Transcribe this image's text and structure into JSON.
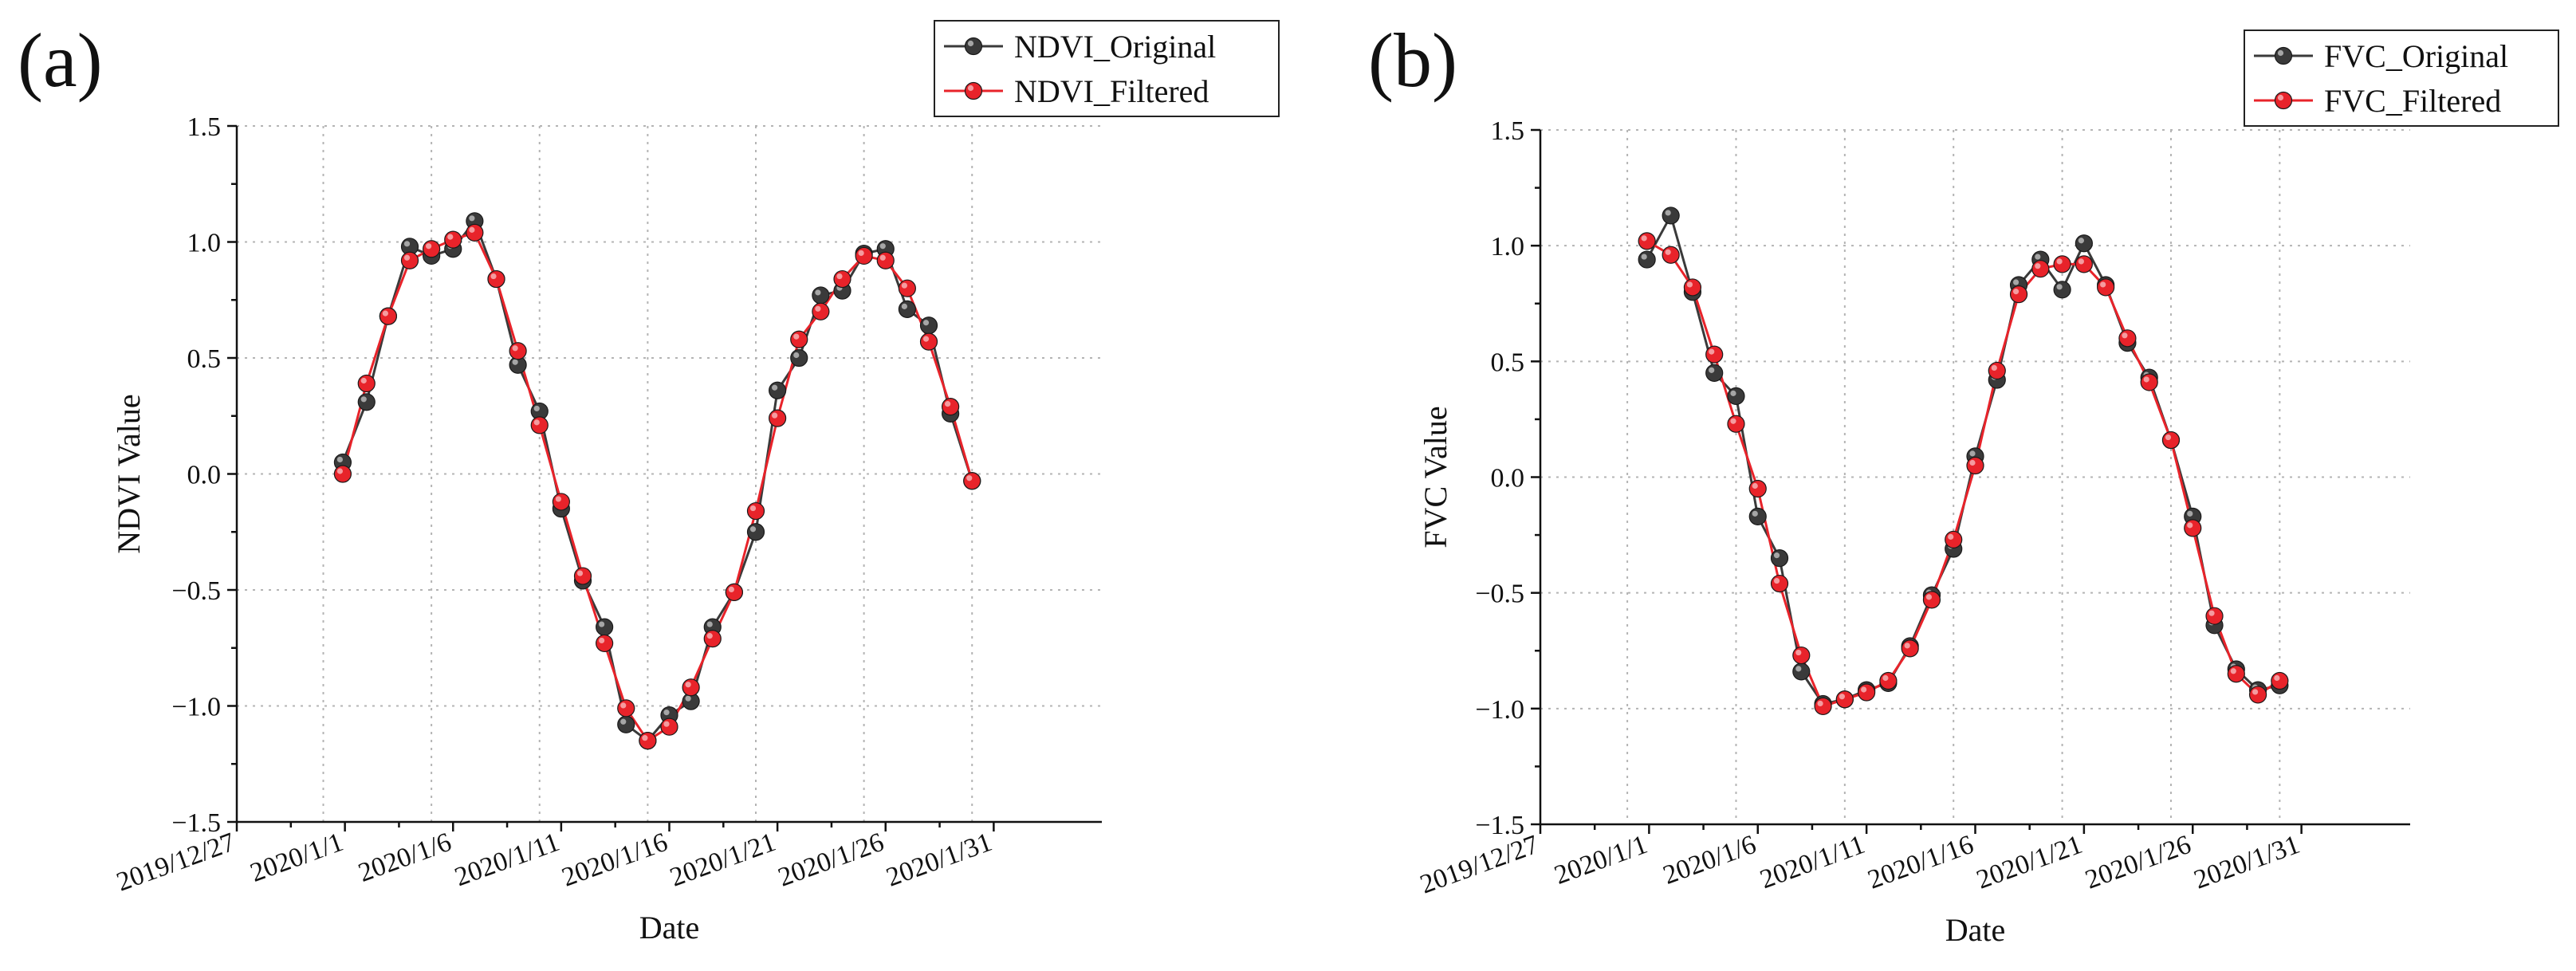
{
  "chart_data": [
    {
      "type": "line",
      "panel_label": "(a)",
      "xlabel": "Date",
      "ylabel": "NDVI Value",
      "ylim": [
        -1.5,
        1.5
      ],
      "yticks": [
        -1.5,
        -1.0,
        -0.5,
        0.0,
        0.5,
        1.0,
        1.5
      ],
      "ytick_labels": [
        "−1.5",
        "−1.0",
        "−0.5",
        "0.0",
        "0.5",
        "1.0",
        "1.5"
      ],
      "xlim": [
        -4,
        36
      ],
      "xticks": [
        0,
        5,
        10,
        15,
        20,
        25,
        30
      ],
      "xtick_labels": [
        "2019/12/27",
        "2020/1/1",
        "2020/1/6",
        "2020/1/11",
        "2020/1/16",
        "2020/1/21",
        "2020/1/26",
        "2020/1/31"
      ],
      "xtick_positions": [
        -4,
        1,
        6,
        11,
        16,
        21,
        26,
        31
      ],
      "x_unit": "days since 2020/1/1",
      "grid": true,
      "legend_position": "top-right",
      "series": [
        {
          "name": "NDVI_Original",
          "color": "#3a3a3a",
          "x": [
            0.9,
            2,
            3,
            4,
            5,
            6,
            7,
            8,
            9,
            10,
            11,
            12,
            13,
            14,
            15,
            16,
            17,
            18,
            19,
            20,
            21,
            22,
            23,
            24,
            25,
            26,
            27,
            28,
            29,
            30,
            31
          ],
          "y": [
            0.05,
            0.31,
            0.68,
            0.98,
            0.94,
            0.97,
            1.09,
            0.84,
            0.47,
            0.27,
            -0.15,
            -0.46,
            -0.66,
            -1.08,
            -1.15,
            -1.04,
            -0.98,
            -0.66,
            -0.51,
            -0.25,
            0.36,
            0.5,
            0.77,
            0.79,
            0.95,
            0.97,
            0.71,
            0.64,
            0.26,
            -0.03,
            null
          ]
        },
        {
          "name": "NDVI_Filtered",
          "color": "#e8232a",
          "x": [
            0.9,
            2,
            3,
            4,
            5,
            6,
            7,
            8,
            9,
            10,
            11,
            12,
            13,
            14,
            15,
            16,
            17,
            18,
            19,
            20,
            21,
            22,
            23,
            24,
            25,
            26,
            27,
            28,
            29,
            30,
            31
          ],
          "y": [
            0.0,
            0.39,
            0.68,
            0.92,
            0.97,
            1.01,
            1.04,
            0.84,
            0.53,
            0.21,
            -0.12,
            -0.44,
            -0.73,
            -1.01,
            -1.15,
            -1.09,
            -0.92,
            -0.71,
            -0.51,
            -0.16,
            0.24,
            0.58,
            0.7,
            0.84,
            0.94,
            0.92,
            0.8,
            0.57,
            0.29,
            -0.03,
            null
          ]
        }
      ]
    },
    {
      "type": "line",
      "panel_label": "(b)",
      "xlabel": "Date",
      "ylabel": "FVC Value",
      "ylim": [
        -1.5,
        1.5
      ],
      "yticks": [
        -1.5,
        -1.0,
        -0.5,
        0.0,
        0.5,
        1.0,
        1.5
      ],
      "ytick_labels": [
        "−1.5",
        "−1.0",
        "−0.5",
        "0.0",
        "0.5",
        "1.0",
        "1.5"
      ],
      "xlim": [
        -4,
        36
      ],
      "xticks": [
        0,
        5,
        10,
        15,
        20,
        25,
        30
      ],
      "xtick_labels": [
        "2019/12/27",
        "2020/1/1",
        "2020/1/6",
        "2020/1/11",
        "2020/1/16",
        "2020/1/21",
        "2020/1/26",
        "2020/1/31"
      ],
      "xtick_positions": [
        -4,
        1,
        6,
        11,
        16,
        21,
        26,
        31
      ],
      "x_unit": "days since 2020/1/1",
      "grid": true,
      "legend_position": "top-right",
      "series": [
        {
          "name": "FVC_Original",
          "color": "#3a3a3a",
          "x": [
            0.9,
            2,
            3,
            4,
            5,
            6,
            7,
            8,
            9,
            10,
            11,
            12,
            13,
            14,
            15,
            16,
            17,
            18,
            19,
            20,
            21,
            22,
            23,
            24,
            25,
            26,
            27,
            28,
            29,
            30
          ],
          "y": [
            0.94,
            1.13,
            0.8,
            0.45,
            0.35,
            -0.17,
            -0.35,
            -0.84,
            -0.98,
            -0.96,
            -0.92,
            -0.89,
            -0.73,
            -0.51,
            -0.31,
            0.09,
            0.42,
            0.83,
            0.94,
            0.81,
            1.01,
            0.83,
            0.58,
            0.43,
            0.16,
            -0.17,
            -0.64,
            -0.83,
            -0.92,
            -0.9
          ]
        },
        {
          "name": "FVC_Filtered",
          "color": "#e8232a",
          "x": [
            0.9,
            2,
            3,
            4,
            5,
            6,
            7,
            8,
            9,
            10,
            11,
            12,
            13,
            14,
            15,
            16,
            17,
            18,
            19,
            20,
            21,
            22,
            23,
            24,
            25,
            26,
            27,
            28,
            29,
            30
          ],
          "y": [
            1.02,
            0.96,
            0.82,
            0.53,
            0.23,
            -0.05,
            -0.46,
            -0.77,
            -0.99,
            -0.96,
            -0.93,
            -0.88,
            -0.74,
            -0.53,
            -0.27,
            0.05,
            0.46,
            0.79,
            0.9,
            0.92,
            0.92,
            0.82,
            0.6,
            0.41,
            0.16,
            -0.22,
            -0.6,
            -0.85,
            -0.94,
            -0.88
          ]
        }
      ]
    }
  ]
}
